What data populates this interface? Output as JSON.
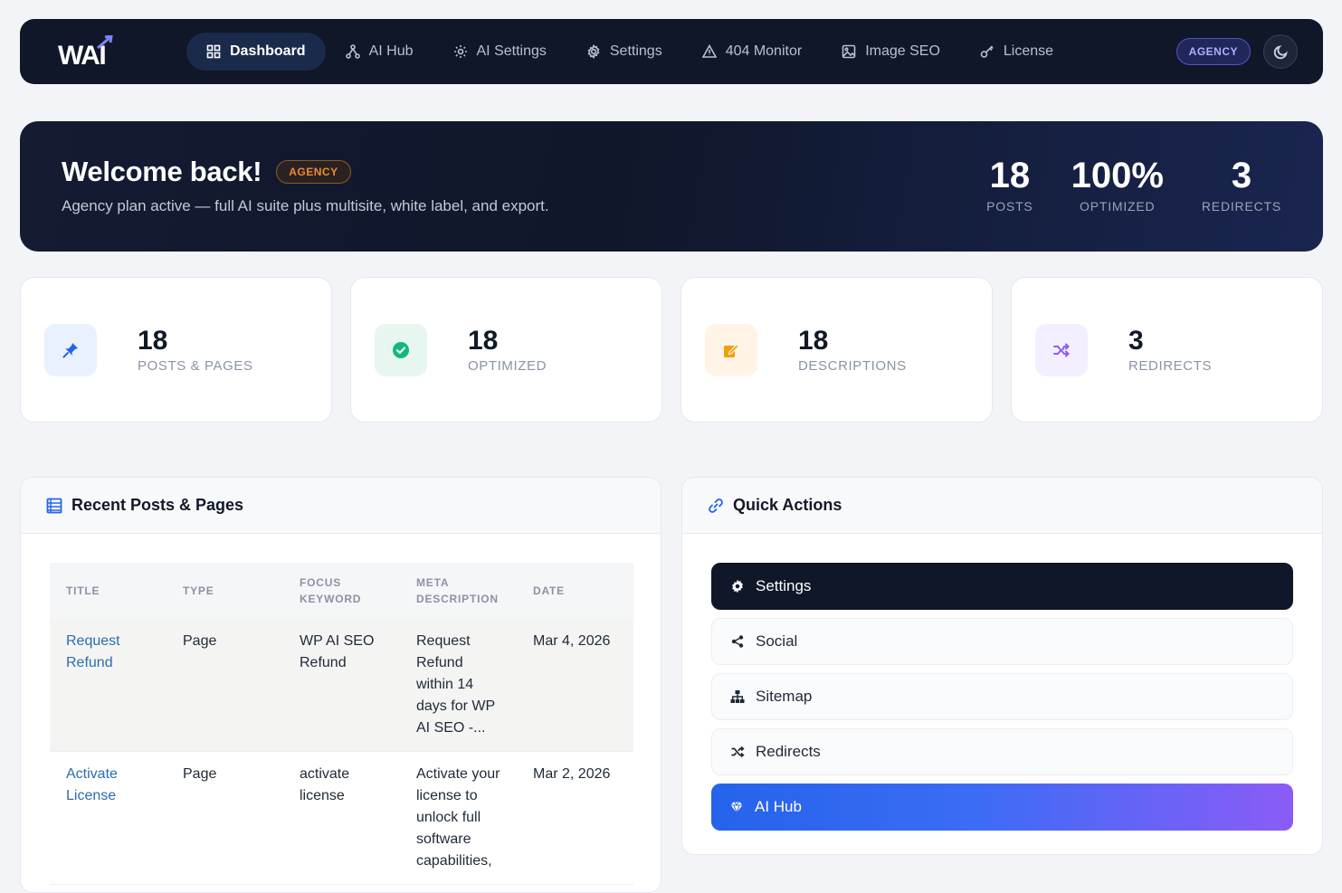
{
  "brand": {
    "logo_text": "WAI"
  },
  "nav": {
    "items": [
      {
        "label": "Dashboard",
        "icon": "grid-icon",
        "active": true
      },
      {
        "label": "AI Hub",
        "icon": "network-icon",
        "active": false
      },
      {
        "label": "AI Settings",
        "icon": "sun-icon",
        "active": false
      },
      {
        "label": "Settings",
        "icon": "gear-icon",
        "active": false
      },
      {
        "label": "404 Monitor",
        "icon": "warning-icon",
        "active": false
      },
      {
        "label": "Image SEO",
        "icon": "image-icon",
        "active": false
      },
      {
        "label": "License",
        "icon": "key-icon",
        "active": false
      }
    ],
    "plan_badge": "AGENCY"
  },
  "hero": {
    "title": "Welcome back!",
    "badge": "AGENCY",
    "subtitle": "Agency plan active — full AI suite plus multisite, white label, and export.",
    "stats": [
      {
        "value": "18",
        "label": "POSTS"
      },
      {
        "value": "100%",
        "label": "OPTIMIZED"
      },
      {
        "value": "3",
        "label": "REDIRECTS"
      }
    ]
  },
  "cards": [
    {
      "value": "18",
      "label": "POSTS & PAGES",
      "icon": "pin-icon",
      "color": "#2563eb",
      "bg": "#eaf1fe"
    },
    {
      "value": "18",
      "label": "OPTIMIZED",
      "icon": "check-circle-icon",
      "color": "#10b981",
      "bg": "#e7f7f0"
    },
    {
      "value": "18",
      "label": "DESCRIPTIONS",
      "icon": "edit-doc-icon",
      "color": "#f59e0b",
      "bg": "#fff4e5"
    },
    {
      "value": "3",
      "label": "REDIRECTS",
      "icon": "shuffle-icon",
      "color": "#8b5cf6",
      "bg": "#f3effe"
    }
  ],
  "recent": {
    "title": "Recent Posts & Pages",
    "columns": [
      "TITLE",
      "TYPE",
      "FOCUS KEYWORD",
      "META DESCRIPTION",
      "DATE"
    ],
    "rows": [
      {
        "title": "Request Refund",
        "type": "Page",
        "keyword": "WP AI SEO Refund",
        "meta": "Request Refund within 14 days for WP AI SEO -...",
        "date": "Mar 4, 2026"
      },
      {
        "title": "Activate License",
        "type": "Page",
        "keyword": "activate license",
        "meta": "Activate your license to unlock full software capabilities,",
        "date": "Mar 2, 2026"
      }
    ]
  },
  "quick_actions": {
    "title": "Quick Actions",
    "items": [
      {
        "label": "Settings",
        "icon": "gear-icon",
        "style": "dark"
      },
      {
        "label": "Social",
        "icon": "share-icon",
        "style": "light"
      },
      {
        "label": "Sitemap",
        "icon": "sitemap-icon",
        "style": "light"
      },
      {
        "label": "Redirects",
        "icon": "shuffle-icon",
        "style": "light"
      },
      {
        "label": "AI Hub",
        "icon": "gem-icon",
        "style": "grad"
      }
    ]
  }
}
